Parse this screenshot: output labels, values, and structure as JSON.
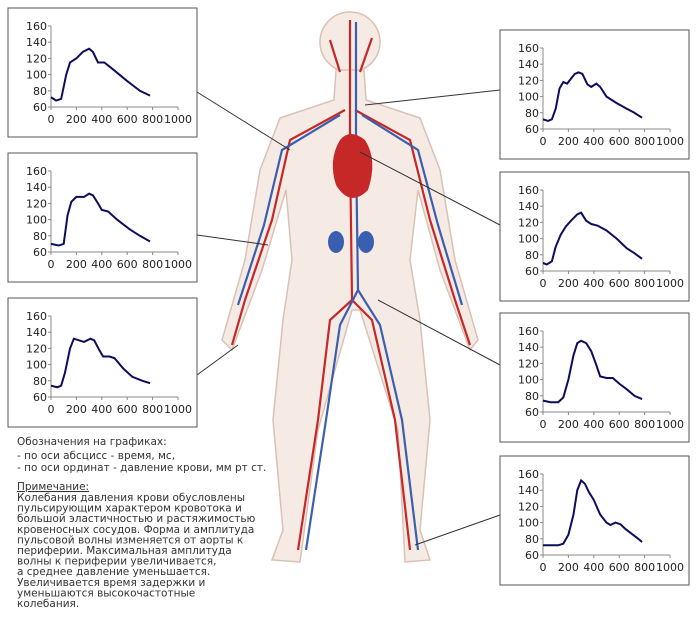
{
  "chart_data": [
    {
      "type": "line",
      "x": [
        0,
        40,
        80,
        120,
        150,
        200,
        250,
        300,
        330,
        370,
        420,
        500,
        600,
        700,
        780
      ],
      "series": [
        {
          "color": "#0d0d5c",
          "values": [
            72,
            68,
            70,
            100,
            115,
            120,
            128,
            132,
            128,
            115,
            115,
            105,
            92,
            80,
            74
          ]
        }
      ],
      "xlim": [
        0,
        1000
      ],
      "ylim": [
        60,
        160
      ],
      "xticks": [
        0,
        200,
        400,
        600,
        800,
        1000
      ],
      "yticks": [
        60,
        80,
        100,
        120,
        140,
        160
      ]
    },
    {
      "type": "line",
      "x": [
        0,
        60,
        100,
        130,
        160,
        200,
        260,
        300,
        330,
        370,
        400,
        450,
        520,
        620,
        700,
        780
      ],
      "series": [
        {
          "color": "#0d0d5c",
          "values": [
            70,
            68,
            70,
            105,
            122,
            128,
            128,
            132,
            130,
            120,
            112,
            110,
            100,
            88,
            80,
            73
          ]
        }
      ],
      "xlim": [
        0,
        1000
      ],
      "ylim": [
        60,
        160
      ],
      "xticks": [
        0,
        200,
        400,
        600,
        800,
        1000
      ],
      "yticks": [
        60,
        80,
        100,
        120,
        140,
        160
      ]
    },
    {
      "type": "line",
      "x": [
        0,
        50,
        80,
        110,
        150,
        180,
        220,
        260,
        310,
        340,
        380,
        410,
        460,
        500,
        570,
        640,
        720,
        780
      ],
      "series": [
        {
          "color": "#0d0d5c",
          "values": [
            74,
            72,
            74,
            90,
            120,
            132,
            130,
            128,
            132,
            130,
            118,
            110,
            110,
            108,
            95,
            85,
            80,
            77
          ]
        }
      ],
      "xlim": [
        0,
        1000
      ],
      "ylim": [
        60,
        160
      ],
      "xticks": [
        0,
        200,
        400,
        600,
        800,
        1000
      ],
      "yticks": [
        60,
        80,
        100,
        120,
        140,
        160
      ]
    },
    {
      "type": "line",
      "x": [
        0,
        40,
        70,
        100,
        130,
        160,
        190,
        220,
        250,
        280,
        310,
        350,
        380,
        420,
        450,
        500,
        580,
        660,
        720,
        780
      ],
      "series": [
        {
          "color": "#0d0d5c",
          "values": [
            72,
            70,
            72,
            85,
            110,
            118,
            116,
            122,
            128,
            130,
            128,
            115,
            112,
            116,
            112,
            100,
            92,
            85,
            80,
            74
          ]
        }
      ],
      "xlim": [
        0,
        1000
      ],
      "ylim": [
        60,
        160
      ],
      "xticks": [
        0,
        200,
        400,
        600,
        800,
        1000
      ],
      "yticks": [
        60,
        80,
        100,
        120,
        140,
        160
      ]
    },
    {
      "type": "line",
      "x": [
        0,
        30,
        70,
        100,
        140,
        180,
        220,
        270,
        300,
        340,
        380,
        430,
        500,
        580,
        660,
        720,
        780
      ],
      "series": [
        {
          "color": "#0d0d5c",
          "values": [
            70,
            68,
            72,
            90,
            105,
            115,
            122,
            130,
            132,
            122,
            118,
            116,
            110,
            100,
            88,
            82,
            75
          ]
        }
      ],
      "xlim": [
        0,
        1000
      ],
      "ylim": [
        60,
        160
      ],
      "xticks": [
        0,
        200,
        400,
        600,
        800,
        1000
      ],
      "yticks": [
        60,
        80,
        100,
        120,
        140,
        160
      ]
    },
    {
      "type": "line",
      "x": [
        0,
        60,
        120,
        160,
        200,
        240,
        270,
        300,
        340,
        380,
        420,
        450,
        500,
        550,
        600,
        660,
        720,
        780
      ],
      "series": [
        {
          "color": "#0d0d5c",
          "values": [
            74,
            72,
            72,
            78,
            100,
            130,
            145,
            148,
            145,
            135,
            118,
            104,
            102,
            102,
            95,
            88,
            80,
            76
          ]
        }
      ],
      "xlim": [
        0,
        1000
      ],
      "ylim": [
        60,
        160
      ],
      "xticks": [
        0,
        200,
        400,
        600,
        800,
        1000
      ],
      "yticks": [
        60,
        80,
        100,
        120,
        140,
        160
      ]
    },
    {
      "type": "line",
      "x": [
        0,
        60,
        120,
        160,
        200,
        240,
        270,
        300,
        330,
        360,
        400,
        450,
        500,
        530,
        570,
        610,
        650,
        700,
        750,
        780
      ],
      "series": [
        {
          "color": "#0d0d5c",
          "values": [
            72,
            72,
            72,
            74,
            85,
            110,
            140,
            152,
            148,
            138,
            128,
            110,
            100,
            97,
            100,
            98,
            92,
            86,
            80,
            76
          ]
        }
      ],
      "xlim": [
        0,
        1000
      ],
      "ylim": [
        60,
        160
      ],
      "xticks": [
        0,
        200,
        400,
        600,
        800,
        1000
      ],
      "yticks": [
        60,
        80,
        100,
        120,
        140,
        160
      ]
    }
  ],
  "legend": {
    "title": "Обозначения на графиках:",
    "lines": [
      "- по оси абсцисс - время, мс,",
      "- по оси ординат - давление крови, мм рт ст."
    ]
  },
  "note": {
    "title": "Примечание:",
    "lines": [
      "Колебания давления крови обусловлены",
      "пульсирующим характером кровотока и",
      "большой эластичностью и растяжимостью",
      "кровеносных сосудов. Форма и амплитуда",
      "пульсовой волны изменяется от аорты к",
      "периферии. Максимальная амплитуда",
      "волны к периферии увеличивается,",
      "а среднее давление уменьшается.",
      "Увеличивается время задержки и",
      "уменьшаются высокочастотные",
      "колебания."
    ]
  }
}
